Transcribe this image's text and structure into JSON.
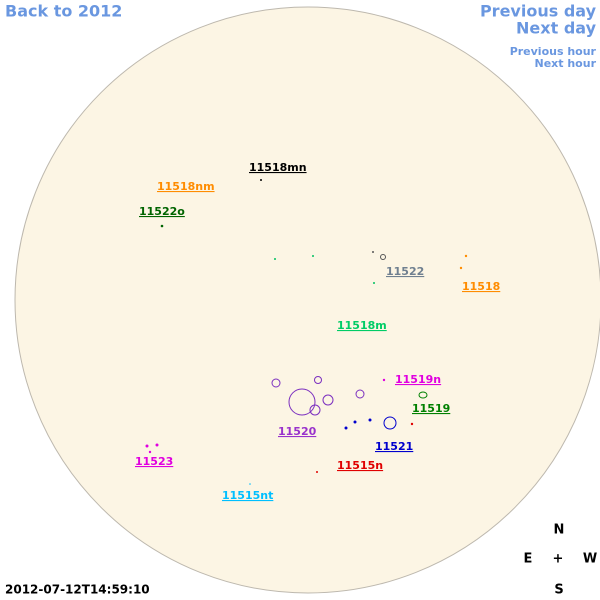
{
  "navigation": {
    "back": "Back to 2012",
    "previous_day": "Previous day",
    "next_day": "Next day",
    "previous_hour": "Previous hour",
    "next_hour": "Next hour"
  },
  "regions": [
    {
      "label": "11518mn"
    },
    {
      "label": "11518nm"
    },
    {
      "label": "11522o"
    },
    {
      "label": "11522"
    },
    {
      "label": "11518"
    },
    {
      "label": "11518m"
    },
    {
      "label": "11519n"
    },
    {
      "label": "11519"
    },
    {
      "label": "11520"
    },
    {
      "label": "11521"
    },
    {
      "label": "11515n"
    },
    {
      "label": "11523"
    },
    {
      "label": "11515nt"
    }
  ],
  "compass": {
    "north": "N",
    "east": "E",
    "center": "+",
    "west": "W",
    "south": "S"
  },
  "timestamp": "2012-07-12T14:59:10"
}
